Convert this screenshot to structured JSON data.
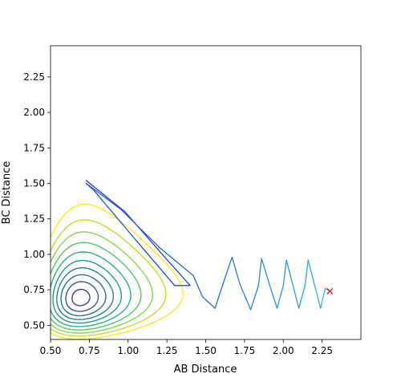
{
  "chart_data": {
    "type": "contour",
    "xlabel": "AB Distance",
    "ylabel": "BC Distance",
    "xlim": [
      0.5,
      2.5
    ],
    "ylim": [
      0.4,
      2.47
    ],
    "x_ticks": [
      0.5,
      0.75,
      1.0,
      1.25,
      1.5,
      1.75,
      2.0,
      2.25
    ],
    "x_tick_labels": [
      "0.50",
      "0.75",
      "1.00",
      "1.25",
      "1.50",
      "1.75",
      "2.00",
      "2.25"
    ],
    "y_ticks": [
      0.5,
      0.75,
      1.0,
      1.25,
      1.5,
      1.75,
      2.0,
      2.25
    ],
    "y_tick_labels": [
      "0.50",
      "0.75",
      "1.00",
      "1.25",
      "1.50",
      "1.75",
      "2.00",
      "2.25"
    ],
    "grid": false,
    "colormap": "viridis",
    "contour_series": [
      {
        "level": 0.02,
        "color": "#440154"
      },
      {
        "level": 0.1,
        "color": "#482173"
      },
      {
        "level": 0.22,
        "color": "#433e85"
      },
      {
        "level": 0.38,
        "color": "#38588c"
      },
      {
        "level": 0.58,
        "color": "#2d708e"
      },
      {
        "level": 0.82,
        "color": "#25858e"
      },
      {
        "level": 1.1,
        "color": "#1e9b8a"
      },
      {
        "level": 1.45,
        "color": "#2ab07f"
      },
      {
        "level": 1.85,
        "color": "#52c569"
      },
      {
        "level": 2.3,
        "color": "#86d549"
      },
      {
        "level": 2.8,
        "color": "#c2df23"
      },
      {
        "level": 3.4,
        "color": "#fde725"
      }
    ],
    "trajectory": {
      "start": [
        0.73,
        1.52
      ],
      "end": [
        2.3,
        0.74
      ],
      "color_start": "#1f3cc8",
      "color_end": "#30b6e8",
      "end_marker": "x",
      "end_marker_color": "#e41a1c",
      "points": [
        [
          0.73,
          1.52
        ],
        [
          0.98,
          1.3
        ],
        [
          1.22,
          1.0
        ],
        [
          1.4,
          0.78
        ],
        [
          1.3,
          0.78
        ],
        [
          1.05,
          1.1
        ],
        [
          0.78,
          1.45
        ],
        [
          0.73,
          1.5
        ],
        [
          0.95,
          1.32
        ],
        [
          1.2,
          1.05
        ],
        [
          1.42,
          0.85
        ],
        [
          1.48,
          0.7
        ],
        [
          1.56,
          0.62
        ],
        [
          1.62,
          0.82
        ],
        [
          1.67,
          0.98
        ],
        [
          1.72,
          0.79
        ],
        [
          1.79,
          0.61
        ],
        [
          1.84,
          0.78
        ],
        [
          1.86,
          0.97
        ],
        [
          1.91,
          0.79
        ],
        [
          1.96,
          0.62
        ],
        [
          2.0,
          0.78
        ],
        [
          2.02,
          0.96
        ],
        [
          2.06,
          0.79
        ],
        [
          2.1,
          0.62
        ],
        [
          2.14,
          0.78
        ],
        [
          2.16,
          0.96
        ],
        [
          2.2,
          0.79
        ],
        [
          2.24,
          0.62
        ],
        [
          2.27,
          0.76
        ],
        [
          2.3,
          0.74
        ]
      ]
    }
  }
}
